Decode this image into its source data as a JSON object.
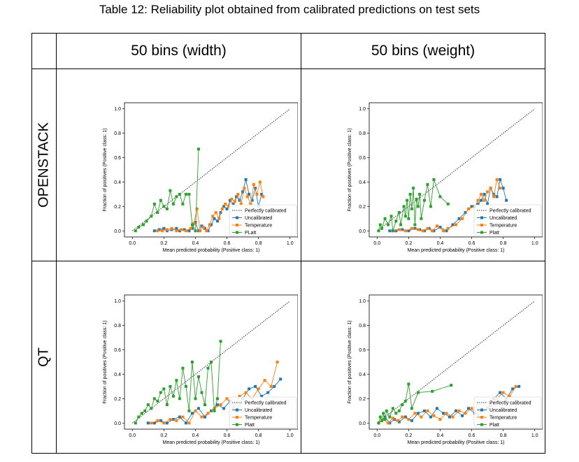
{
  "caption": "Table 12: Reliability plot obtained from calibrated predictions on test sets",
  "columns": [
    "50 bins (width)",
    "50 bins (weight)"
  ],
  "rows": [
    "OPENSTACK",
    "QT"
  ],
  "colors": {
    "perfect": "#333333",
    "uncalibrated": "#1f77b4",
    "temperature": "#ff7f0e",
    "platt": "#2ca02c"
  },
  "chart_data": [
    {
      "type": "line",
      "panel": "openstack-width",
      "xlabel": "Mean predicted probability (Positive class: 1)",
      "ylabel": "Fraction of positives (Positive class: 1)",
      "xlim": [
        -0.05,
        1.05
      ],
      "ylim": [
        -0.05,
        1.05
      ],
      "xticks": [
        "0.0",
        "0.2",
        "0.4",
        "0.6",
        "0.8",
        "1.0"
      ],
      "yticks": [
        "0.0",
        "0.2",
        "0.4",
        "0.6",
        "0.8",
        "1.0"
      ],
      "legend_position": "lower right",
      "series": [
        {
          "name": "Perfectly calibrated",
          "style": "dotted",
          "x": [
            0,
            1
          ],
          "y": [
            0,
            1
          ]
        },
        {
          "name": "Uncalibrated",
          "x": [
            0.14,
            0.17,
            0.2,
            0.22,
            0.25,
            0.28,
            0.3,
            0.33,
            0.36,
            0.38,
            0.4,
            0.42,
            0.44,
            0.46,
            0.48,
            0.5,
            0.52,
            0.54,
            0.56,
            0.58,
            0.6,
            0.62,
            0.64,
            0.66,
            0.68,
            0.7,
            0.72,
            0.74,
            0.76,
            0.78,
            0.8,
            0.82
          ],
          "y": [
            0.0,
            0.01,
            0.02,
            0.0,
            0.01,
            0.02,
            0.0,
            0.01,
            0.0,
            0.02,
            0.07,
            0.0,
            0.04,
            0.02,
            0.0,
            0.05,
            0.1,
            0.08,
            0.15,
            0.2,
            0.18,
            0.25,
            0.22,
            0.28,
            0.25,
            0.32,
            0.42,
            0.3,
            0.25,
            0.35,
            0.2,
            0.3
          ]
        },
        {
          "name": "Temperature",
          "x": [
            0.16,
            0.19,
            0.22,
            0.25,
            0.28,
            0.31,
            0.34,
            0.37,
            0.39,
            0.41,
            0.43,
            0.45,
            0.47,
            0.49,
            0.51,
            0.53,
            0.55,
            0.57,
            0.59,
            0.61,
            0.63,
            0.65,
            0.67,
            0.69,
            0.71,
            0.73,
            0.75,
            0.77,
            0.79,
            0.81,
            0.83
          ],
          "y": [
            0.0,
            0.0,
            0.01,
            0.02,
            0.0,
            0.01,
            0.0,
            0.02,
            0.06,
            0.18,
            0.0,
            0.03,
            0.0,
            0.05,
            0.12,
            0.15,
            0.1,
            0.18,
            0.22,
            0.2,
            0.26,
            0.24,
            0.3,
            0.22,
            0.35,
            0.28,
            0.22,
            0.38,
            0.3,
            0.4,
            0.28
          ]
        },
        {
          "name": "PLatt",
          "x": [
            0.02,
            0.04,
            0.07,
            0.09,
            0.12,
            0.14,
            0.16,
            0.18,
            0.2,
            0.22,
            0.24,
            0.26,
            0.28,
            0.3,
            0.32,
            0.34,
            0.36,
            0.38,
            0.4,
            0.42
          ],
          "y": [
            0.0,
            0.03,
            0.05,
            0.08,
            0.12,
            0.22,
            0.15,
            0.25,
            0.2,
            0.18,
            0.33,
            0.22,
            0.28,
            0.3,
            0.22,
            0.3,
            0.3,
            0.05,
            0.0,
            0.67
          ]
        }
      ]
    },
    {
      "type": "line",
      "panel": "openstack-weight",
      "xlabel": "Mean predicted probability (Positive class: 1)",
      "ylabel": "Fraction of positives (Positive class: 1)",
      "xlim": [
        -0.05,
        1.05
      ],
      "ylim": [
        -0.05,
        1.05
      ],
      "xticks": [
        "0.0",
        "0.2",
        "0.4",
        "0.6",
        "0.8",
        "1.0"
      ],
      "yticks": [
        "0.0",
        "0.2",
        "0.4",
        "0.6",
        "0.8",
        "1.0"
      ],
      "legend_position": "lower right",
      "series": [
        {
          "name": "Perfectly calibrated",
          "style": "dotted",
          "x": [
            0,
            1
          ],
          "y": [
            0,
            1
          ]
        },
        {
          "name": "Uncalibrated",
          "x": [
            0.08,
            0.12,
            0.16,
            0.2,
            0.24,
            0.27,
            0.3,
            0.33,
            0.36,
            0.4,
            0.44,
            0.48,
            0.52,
            0.56,
            0.6,
            0.64,
            0.66,
            0.68,
            0.7,
            0.72,
            0.74,
            0.76,
            0.78,
            0.8,
            0.82
          ],
          "y": [
            0.0,
            0.0,
            0.01,
            0.0,
            0.02,
            0.01,
            0.0,
            0.02,
            0.0,
            0.03,
            0.0,
            0.05,
            0.1,
            0.15,
            0.2,
            0.22,
            0.25,
            0.3,
            0.22,
            0.35,
            0.3,
            0.28,
            0.42,
            0.35,
            0.25
          ]
        },
        {
          "name": "Temperature",
          "x": [
            0.1,
            0.14,
            0.18,
            0.22,
            0.26,
            0.29,
            0.32,
            0.35,
            0.38,
            0.42,
            0.45,
            0.5,
            0.54,
            0.58,
            0.62,
            0.64,
            0.66,
            0.68,
            0.7,
            0.72,
            0.74,
            0.76,
            0.78
          ],
          "y": [
            0.0,
            0.01,
            0.0,
            0.02,
            0.01,
            0.0,
            0.02,
            0.0,
            0.04,
            0.0,
            0.02,
            0.05,
            0.1,
            0.18,
            0.2,
            0.25,
            0.3,
            0.25,
            0.32,
            0.35,
            0.28,
            0.42,
            0.35
          ]
        },
        {
          "name": "Platt",
          "x": [
            0.01,
            0.02,
            0.03,
            0.05,
            0.07,
            0.09,
            0.1,
            0.12,
            0.14,
            0.15,
            0.17,
            0.18,
            0.19,
            0.2,
            0.21,
            0.22,
            0.23,
            0.24,
            0.25,
            0.26,
            0.27,
            0.28,
            0.3,
            0.32,
            0.34,
            0.36,
            0.4,
            0.45
          ],
          "y": [
            0.0,
            0.05,
            0.02,
            0.1,
            0.05,
            0.12,
            0.0,
            0.08,
            0.15,
            0.05,
            0.2,
            0.12,
            0.25,
            0.1,
            0.3,
            0.18,
            0.35,
            0.05,
            0.26,
            0.2,
            0.3,
            0.1,
            0.25,
            0.38,
            0.2,
            0.42,
            0.28,
            0.22
          ]
        }
      ]
    },
    {
      "type": "line",
      "panel": "qt-width",
      "xlabel": "Mean predicted probability (Positive class: 1)",
      "ylabel": "Fraction of positives (Positive class: 1)",
      "xlim": [
        -0.05,
        1.05
      ],
      "ylim": [
        -0.05,
        1.05
      ],
      "xticks": [
        "0.0",
        "0.2",
        "0.4",
        "0.6",
        "0.8",
        "1.0"
      ],
      "yticks": [
        "0.0",
        "0.2",
        "0.4",
        "0.6",
        "0.8",
        "1.0"
      ],
      "legend_position": "lower right",
      "series": [
        {
          "name": "Perfectly calibrated",
          "style": "dotted",
          "x": [
            0,
            1
          ],
          "y": [
            0,
            1
          ]
        },
        {
          "name": "Uncalibrated",
          "x": [
            0.1,
            0.14,
            0.18,
            0.22,
            0.26,
            0.3,
            0.34,
            0.38,
            0.42,
            0.46,
            0.5,
            0.54,
            0.58,
            0.62,
            0.66,
            0.7,
            0.74,
            0.78,
            0.82,
            0.86,
            0.9,
            0.94
          ],
          "y": [
            0.0,
            0.0,
            0.02,
            0.0,
            0.03,
            0.05,
            0.0,
            0.08,
            0.12,
            0.05,
            0.1,
            0.15,
            0.12,
            0.18,
            0.1,
            0.2,
            0.28,
            0.3,
            0.22,
            0.25,
            0.3,
            0.36
          ]
        },
        {
          "name": "Temperature",
          "x": [
            0.12,
            0.16,
            0.2,
            0.24,
            0.28,
            0.32,
            0.36,
            0.4,
            0.44,
            0.48,
            0.52,
            0.56,
            0.6,
            0.64,
            0.68,
            0.72,
            0.76,
            0.8,
            0.84,
            0.88,
            0.92
          ],
          "y": [
            0.0,
            0.02,
            0.0,
            0.03,
            0.02,
            0.05,
            0.0,
            0.1,
            0.05,
            0.08,
            0.12,
            0.15,
            0.2,
            0.12,
            0.22,
            0.25,
            0.2,
            0.28,
            0.35,
            0.3,
            0.5
          ]
        },
        {
          "name": "Platt",
          "x": [
            0.02,
            0.04,
            0.06,
            0.08,
            0.1,
            0.12,
            0.14,
            0.16,
            0.18,
            0.2,
            0.22,
            0.24,
            0.26,
            0.28,
            0.3,
            0.32,
            0.34,
            0.36,
            0.38,
            0.4,
            0.42,
            0.44,
            0.46,
            0.48,
            0.5,
            0.52,
            0.54,
            0.56
          ],
          "y": [
            0.0,
            0.05,
            0.08,
            0.1,
            0.15,
            0.12,
            0.2,
            0.18,
            0.25,
            0.28,
            0.15,
            0.3,
            0.22,
            0.35,
            0.2,
            0.45,
            0.3,
            0.1,
            0.5,
            0.2,
            0.38,
            0.25,
            0.15,
            0.45,
            0.5,
            0.1,
            0.2,
            0.67
          ]
        }
      ]
    },
    {
      "type": "line",
      "panel": "qt-weight",
      "xlabel": "Mean predicted probability (Positive class: 1)",
      "ylabel": "Fraction of positives (Positive class: 1)",
      "xlim": [
        -0.05,
        1.05
      ],
      "ylim": [
        -0.05,
        1.05
      ],
      "xticks": [
        "0.0",
        "0.2",
        "0.4",
        "0.6",
        "0.8",
        "1.0"
      ],
      "yticks": [
        "0.0",
        "0.2",
        "0.4",
        "0.6",
        "0.8",
        "1.0"
      ],
      "legend_position": "lower right",
      "series": [
        {
          "name": "Perfectly calibrated",
          "style": "dotted",
          "x": [
            0,
            1
          ],
          "y": [
            0,
            1
          ]
        },
        {
          "name": "Uncalibrated",
          "x": [
            0.01,
            0.03,
            0.05,
            0.08,
            0.11,
            0.14,
            0.18,
            0.22,
            0.26,
            0.3,
            0.34,
            0.38,
            0.42,
            0.46,
            0.5,
            0.54,
            0.58,
            0.62,
            0.66,
            0.7,
            0.74,
            0.78,
            0.82,
            0.86,
            0.9
          ],
          "y": [
            0.0,
            0.02,
            0.05,
            0.0,
            0.03,
            0.01,
            0.05,
            0.02,
            0.08,
            0.1,
            0.05,
            0.12,
            0.08,
            0.05,
            0.1,
            0.06,
            0.12,
            0.08,
            0.1,
            0.12,
            0.2,
            0.25,
            0.2,
            0.28,
            0.3
          ]
        },
        {
          "name": "Temperature",
          "x": [
            0.01,
            0.04,
            0.07,
            0.1,
            0.13,
            0.16,
            0.2,
            0.24,
            0.28,
            0.32,
            0.36,
            0.4,
            0.44,
            0.48,
            0.52,
            0.56,
            0.6,
            0.64,
            0.68,
            0.72,
            0.76,
            0.8,
            0.84,
            0.88
          ],
          "y": [
            0.0,
            0.03,
            0.0,
            0.04,
            0.02,
            0.05,
            0.03,
            0.08,
            0.05,
            0.1,
            0.06,
            0.03,
            0.08,
            0.05,
            0.1,
            0.08,
            0.12,
            0.06,
            0.1,
            0.14,
            0.2,
            0.25,
            0.22,
            0.3
          ]
        },
        {
          "name": "Platt",
          "x": [
            0.01,
            0.02,
            0.03,
            0.04,
            0.05,
            0.06,
            0.08,
            0.1,
            0.12,
            0.14,
            0.16,
            0.18,
            0.2,
            0.22,
            0.26,
            0.35,
            0.47
          ],
          "y": [
            0.0,
            0.05,
            0.02,
            0.08,
            0.03,
            0.1,
            0.05,
            0.12,
            0.08,
            0.1,
            0.15,
            0.18,
            0.32,
            0.12,
            0.25,
            0.26,
            0.31
          ]
        }
      ]
    }
  ]
}
